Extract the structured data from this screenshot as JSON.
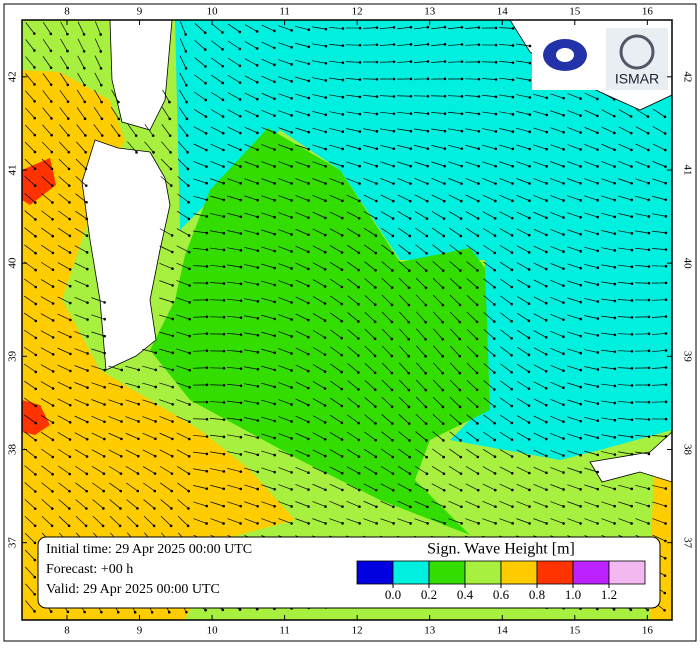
{
  "map": {
    "xlim": [
      7.38,
      16.34
    ],
    "ylim": [
      36.17,
      42.61
    ],
    "xticks": [
      8,
      9,
      10,
      11,
      12,
      13,
      14,
      15,
      16
    ],
    "yticks": [
      37,
      38,
      39,
      40,
      41,
      42
    ]
  },
  "logo": "ISMAR",
  "info": [
    "Initial time: 29 Apr 2025 00:00 UTC",
    "Forecast: +00 h",
    "Valid: 29 Apr 2025 00:00 UTC"
  ],
  "legend": {
    "title": "Sign. Wave Height [m]",
    "colors": [
      "#0000e0",
      "#00f0e0",
      "#33dd00",
      "#a8f040",
      "#ffcc00",
      "#ff3300",
      "#bb22ff",
      "#f4b8f0"
    ],
    "ticks": [
      {
        "value": 0,
        "label": "0.0"
      },
      {
        "value": 0.2,
        "label": "0.2"
      },
      {
        "value": 0.4,
        "label": "0.4"
      },
      {
        "value": 0.6,
        "label": "0.6"
      },
      {
        "value": 0.8,
        "label": "0.8"
      },
      {
        "value": 1.0,
        "label": "1.0"
      },
      {
        "value": 1.2,
        "label": "1.2"
      }
    ]
  }
}
